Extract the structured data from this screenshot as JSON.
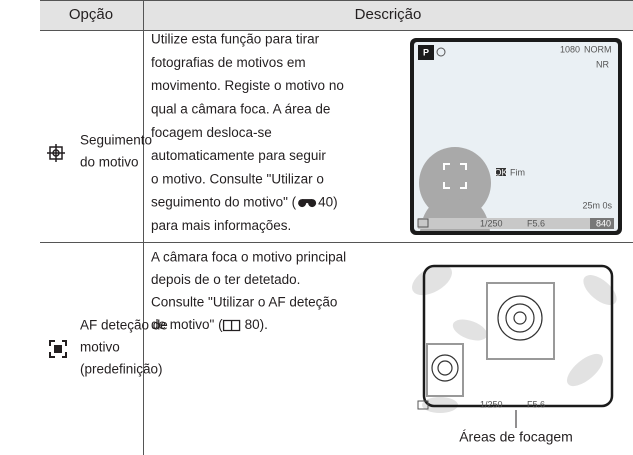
{
  "table": {
    "header": [
      "Opção",
      "Descrição"
    ],
    "rows": [
      {
        "option": [
          "Seguimento",
          "do motivo"
        ],
        "description": [
          "Utilize esta função para tirar",
          "fotografias de motivos em",
          "movimento. Registe o motivo no",
          "qual a câmara foca. A área de",
          "focagem desloca-se",
          "automaticamente para seguir",
          "o motivo. Consulte \"Utilizar o"
        ],
        "reference": [
          "seguimento do motivo\" (",
          "40)"
        ],
        "description_end": [
          "para mais informações."
        ],
        "screen": {
          "mode": "P",
          "resolution": "1080",
          "quality": "NORM",
          "nr": "NR",
          "ok": "OK",
          "end": "Fim",
          "time": "25m 0s",
          "shutter": "1/250",
          "aperture": "F5.6",
          "shots": "840"
        }
      },
      {
        "option": [
          "AF deteção de",
          "motivo",
          "(predefinição)"
        ],
        "description": [
          "A câmara foca o motivo principal",
          "depois de o ter detetado.",
          "Consulte \"Utilizar o AF deteção"
        ],
        "reference": [
          "de motivo\" (",
          "80)."
        ],
        "screen": {
          "shutter": "1/250",
          "aperture": "F5.6",
          "caption": "Áreas de focagem"
        }
      }
    ]
  }
}
